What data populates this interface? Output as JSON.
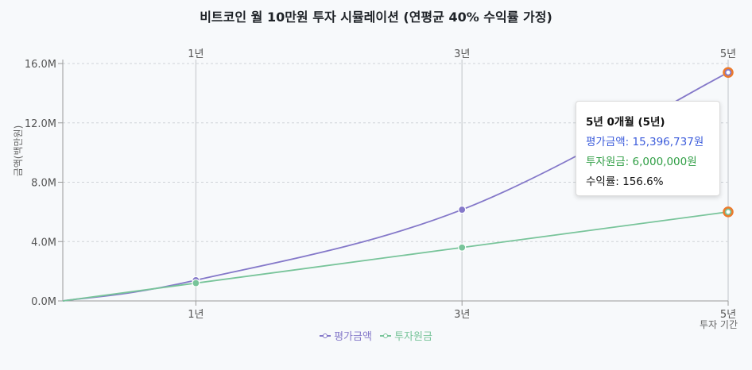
{
  "chart_data": {
    "type": "line",
    "title": "비트코인 월 10만원 투자 시뮬레이션 (연평균 40% 수익률 가정)",
    "xlabel": "투자 기간",
    "ylabel": "금액(백만원)",
    "x": [
      0,
      1,
      3,
      5
    ],
    "x_ticks": [
      "1년",
      "3년",
      "5년"
    ],
    "x_tick_values": [
      1,
      3,
      5
    ],
    "xlim": [
      0,
      5
    ],
    "y_ticks": [
      "0.0M",
      "4.0M",
      "8.0M",
      "12.0M",
      "16.0M"
    ],
    "y_tick_values": [
      0,
      4000000,
      8000000,
      12000000,
      16000000
    ],
    "ylim": [
      0,
      16000000
    ],
    "grid": true,
    "legend_position": "bottom",
    "series": [
      {
        "name": "평가금액",
        "color": "#8478c9",
        "values": [
          0,
          1400000,
          6150000,
          15396737
        ]
      },
      {
        "name": "투자원금",
        "color": "#78c49a",
        "values": [
          0,
          1200000,
          3600000,
          6000000
        ]
      }
    ],
    "highlight_index": 3,
    "highlight_color": "#ec7a2c",
    "tooltip": {
      "title": "5년 0개월 (5년)",
      "value_line": "평가금액: 15,396,737원",
      "invest_line": "투자원금: 6,000,000원",
      "return_line": "수익률: 156.6%"
    }
  }
}
